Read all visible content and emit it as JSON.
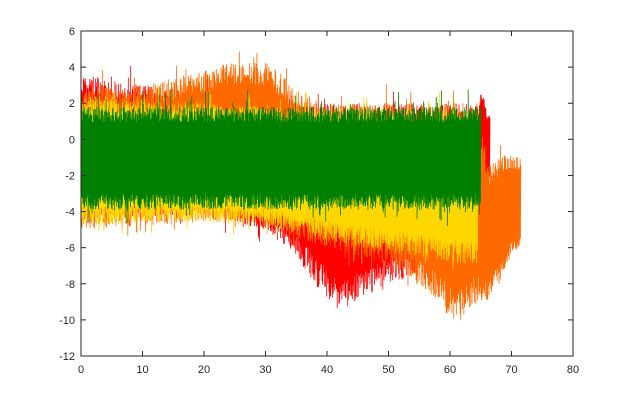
{
  "chart_data": {
    "type": "line",
    "title": "",
    "xlabel": "",
    "ylabel": "",
    "xlim": [
      0,
      80
    ],
    "ylim": [
      -12,
      6
    ],
    "xticks": [
      0,
      10,
      20,
      30,
      40,
      50,
      60,
      70,
      80
    ],
    "yticks": [
      6,
      4,
      2,
      0,
      -2,
      -4,
      -6,
      -8,
      -10,
      -12
    ],
    "grid": false,
    "legend": "none",
    "series": [
      {
        "color": "#ff0000",
        "x_range": [
          0,
          66.5
        ],
        "envelope": {
          "x": [
            0,
            5,
            10,
            20,
            30,
            35,
            38,
            42,
            45,
            50,
            55,
            60,
            63,
            64.5,
            65,
            66,
            66.5
          ],
          "upper": [
            3.6,
            3.3,
            3.0,
            2.5,
            2.2,
            2.0,
            2.0,
            2.0,
            2.0,
            2.0,
            2.0,
            2.0,
            2.0,
            2.0,
            3.0,
            1.5,
            1.5
          ],
          "lower": [
            -4.8,
            -4.5,
            -4.3,
            -4.2,
            -5.0,
            -6.5,
            -8.0,
            -9.5,
            -9.0,
            -8.0,
            -7.5,
            -7.0,
            -6.8,
            -6.5,
            -3.0,
            -2.0,
            -2.0
          ]
        }
      },
      {
        "color": "#ff6a00",
        "x_range": [
          0,
          71.5
        ],
        "envelope": {
          "x": [
            0,
            10,
            20,
            25,
            30,
            33,
            35,
            40,
            50,
            55,
            58,
            61,
            63,
            64.5,
            66,
            68,
            70,
            71.5
          ],
          "upper": [
            2.8,
            3.0,
            3.8,
            4.4,
            4.3,
            3.5,
            2.5,
            2.0,
            2.0,
            2.0,
            2.0,
            2.0,
            2.0,
            2.0,
            -1.5,
            -1.0,
            -0.8,
            -1.0
          ],
          "lower": [
            -5.0,
            -4.8,
            -4.6,
            -4.5,
            -4.5,
            -5.0,
            -5.5,
            -6.0,
            -7.0,
            -8.0,
            -9.0,
            -10.5,
            -9.5,
            -9.0,
            -9.0,
            -8.0,
            -6.5,
            -6.0
          ]
        }
      },
      {
        "color": "#ffd700",
        "x_range": [
          0,
          64.5
        ],
        "envelope": {
          "x": [
            0,
            10,
            20,
            30,
            35,
            40,
            50,
            60,
            64.5
          ],
          "upper": [
            2.5,
            2.2,
            2.0,
            1.8,
            1.7,
            1.7,
            1.6,
            1.6,
            1.6
          ],
          "lower": [
            -4.8,
            -4.6,
            -4.6,
            -4.8,
            -5.2,
            -5.6,
            -6.2,
            -6.8,
            -7.0
          ]
        }
      },
      {
        "color": "#008000",
        "x_range": [
          0,
          65
        ],
        "envelope": {
          "x": [
            0,
            10,
            20,
            30,
            40,
            50,
            60,
            65
          ],
          "upper": [
            1.8,
            1.8,
            1.8,
            1.8,
            1.8,
            1.8,
            1.8,
            1.8
          ],
          "lower": [
            -3.9,
            -3.9,
            -3.9,
            -3.9,
            -3.9,
            -3.9,
            -3.9,
            -3.9
          ]
        }
      }
    ]
  }
}
